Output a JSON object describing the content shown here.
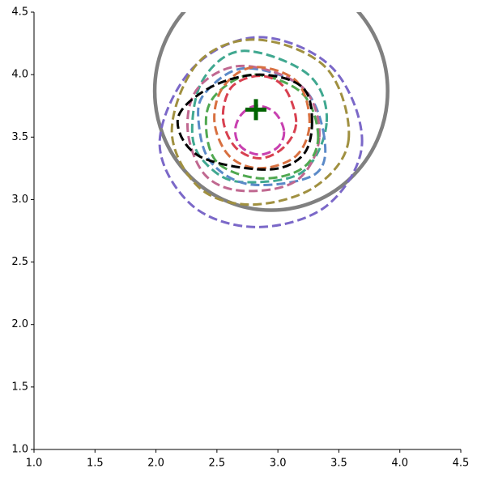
{
  "chart_data": {
    "type": "contour",
    "xlim": [
      1.0,
      4.5
    ],
    "ylim": [
      1.0,
      4.5
    ],
    "xticks": [
      {
        "value": 1.0,
        "label": "1.0"
      },
      {
        "value": 1.5,
        "label": "1.5"
      },
      {
        "value": 2.0,
        "label": "2.0"
      },
      {
        "value": 2.5,
        "label": "2.5"
      },
      {
        "value": 3.0,
        "label": "3.0"
      },
      {
        "value": 3.5,
        "label": "3.5"
      },
      {
        "value": 4.0,
        "label": "4.0"
      },
      {
        "value": 4.5,
        "label": "4.5"
      }
    ],
    "yticks": [
      {
        "value": 1.0,
        "label": "1.0"
      },
      {
        "value": 1.5,
        "label": "1.5"
      },
      {
        "value": 2.0,
        "label": "2.0"
      },
      {
        "value": 2.5,
        "label": "2.5"
      },
      {
        "value": 3.0,
        "label": "3.0"
      },
      {
        "value": 3.5,
        "label": "3.5"
      },
      {
        "value": 4.0,
        "label": "4.0"
      },
      {
        "value": 4.5,
        "label": "4.5"
      }
    ],
    "circle": {
      "center": [
        2.945,
        3.87
      ],
      "radius": 0.955,
      "color": "#808080"
    },
    "marker": {
      "x": 2.82,
      "y": 3.72,
      "color": "#006400"
    },
    "series": [
      {
        "color": "#7b68c8",
        "x": [
          3.69,
          3.45,
          2.85,
          2.3,
          2.03,
          2.3,
          2.83,
          3.4
        ],
        "y": [
          3.45,
          4.05,
          4.3,
          4.05,
          3.45,
          2.95,
          2.78,
          2.95
        ]
      },
      {
        "color": "#a09040",
        "x": [
          3.58,
          3.4,
          2.83,
          2.35,
          2.13,
          2.35,
          2.78,
          3.3
        ],
        "y": [
          3.48,
          4.05,
          4.28,
          4.1,
          3.55,
          3.1,
          2.96,
          3.1
        ]
      },
      {
        "color": "#40a890",
        "x": [
          3.4,
          3.25,
          2.71,
          2.38,
          2.3,
          2.45,
          2.71,
          3.2
        ],
        "y": [
          3.62,
          4.0,
          4.19,
          3.95,
          3.5,
          3.25,
          3.14,
          3.22
        ]
      },
      {
        "color": "#5b8ac8",
        "x": [
          3.38,
          3.2,
          2.72,
          2.4,
          2.35,
          2.45,
          2.78,
          3.3
        ],
        "y": [
          3.5,
          3.9,
          4.05,
          3.85,
          3.62,
          3.3,
          3.12,
          3.2
        ]
      },
      {
        "color": "#c06890",
        "x": [
          3.34,
          3.2,
          2.71,
          2.35,
          2.26,
          2.4,
          2.71,
          3.15
        ],
        "y": [
          3.5,
          3.9,
          4.07,
          3.9,
          3.56,
          3.2,
          3.07,
          3.15
        ]
      },
      {
        "color": "#50a850",
        "x": [
          3.33,
          3.2,
          2.8,
          2.5,
          2.41,
          2.5,
          2.85,
          3.2
        ],
        "y": [
          3.5,
          3.85,
          4.0,
          3.85,
          3.62,
          3.3,
          3.17,
          3.25
        ]
      },
      {
        "color": "#d87040",
        "x": [
          3.26,
          3.15,
          2.8,
          2.55,
          2.48,
          2.6,
          2.85,
          3.15
        ],
        "y": [
          3.62,
          3.95,
          4.06,
          3.9,
          3.62,
          3.35,
          3.25,
          3.35
        ]
      },
      {
        "color": "#d84050",
        "x": [
          3.15,
          3.05,
          2.85,
          2.62,
          2.55,
          2.65,
          2.85,
          3.05
        ],
        "y": [
          3.62,
          3.9,
          3.99,
          3.9,
          3.65,
          3.42,
          3.33,
          3.42
        ]
      },
      {
        "color": "#c840b0",
        "x": [
          3.05,
          2.97,
          2.82,
          2.7,
          2.65,
          2.7,
          2.85,
          3.0
        ],
        "y": [
          3.55,
          3.7,
          3.75,
          3.68,
          3.55,
          3.42,
          3.36,
          3.42
        ]
      },
      {
        "color": "#000000",
        "x": [
          3.28,
          3.2,
          2.85,
          2.45,
          2.18,
          2.35,
          2.9,
          3.2
        ],
        "y": [
          3.62,
          3.9,
          4.0,
          3.9,
          3.65,
          3.35,
          3.24,
          3.35
        ]
      }
    ]
  }
}
